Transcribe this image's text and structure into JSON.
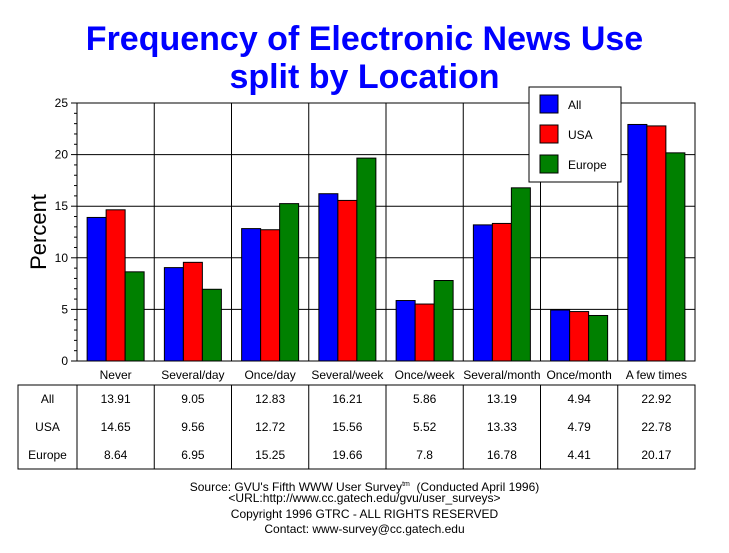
{
  "chart_data": {
    "type": "bar",
    "title": "Frequency of Electronic News Use",
    "subtitle": "split by Location",
    "ylabel": "Percent",
    "xlabel": "",
    "ylim": [
      0,
      25
    ],
    "yticks": [
      0,
      5,
      10,
      15,
      20,
      25
    ],
    "grid": true,
    "legend_position": "top-right",
    "categories": [
      "Never",
      "Several/day",
      "Once/day",
      "Several/week",
      "Once/week",
      "Several/month",
      "Once/month",
      "A few times"
    ],
    "series": [
      {
        "name": "All",
        "color": "#0000ff",
        "values": [
          13.91,
          9.05,
          12.83,
          16.21,
          5.86,
          13.19,
          4.94,
          22.92
        ]
      },
      {
        "name": "USA",
        "color": "#ff0000",
        "values": [
          14.65,
          9.56,
          12.72,
          15.56,
          5.52,
          13.33,
          4.79,
          22.78
        ]
      },
      {
        "name": "Europe",
        "color": "#008000",
        "values": [
          8.64,
          6.95,
          15.25,
          19.66,
          7.8,
          16.78,
          4.41,
          20.17
        ]
      }
    ],
    "table_values": [
      [
        "13.91",
        "9.05",
        "12.83",
        "16.21",
        "5.86",
        "13.19",
        "4.94",
        "22.92"
      ],
      [
        "14.65",
        "9.56",
        "12.72",
        "15.56",
        "5.52",
        "13.33",
        "4.79",
        "22.78"
      ],
      [
        "8.64",
        "6.95",
        "15.25",
        "19.66",
        "7.8",
        "16.78",
        "4.41",
        "20.17"
      ]
    ]
  },
  "footer": {
    "source": "Source: GVU's Fifth WWW User Survey",
    "tm": "tm",
    "conducted": "  (Conducted April 1996)",
    "url": "<URL:http://www.cc.gatech.edu/gvu/user_surveys>",
    "copyright": "Copyright 1996 GTRC -  ALL RIGHTS RESERVED",
    "contact": "Contact: www-survey@cc.gatech.edu"
  }
}
